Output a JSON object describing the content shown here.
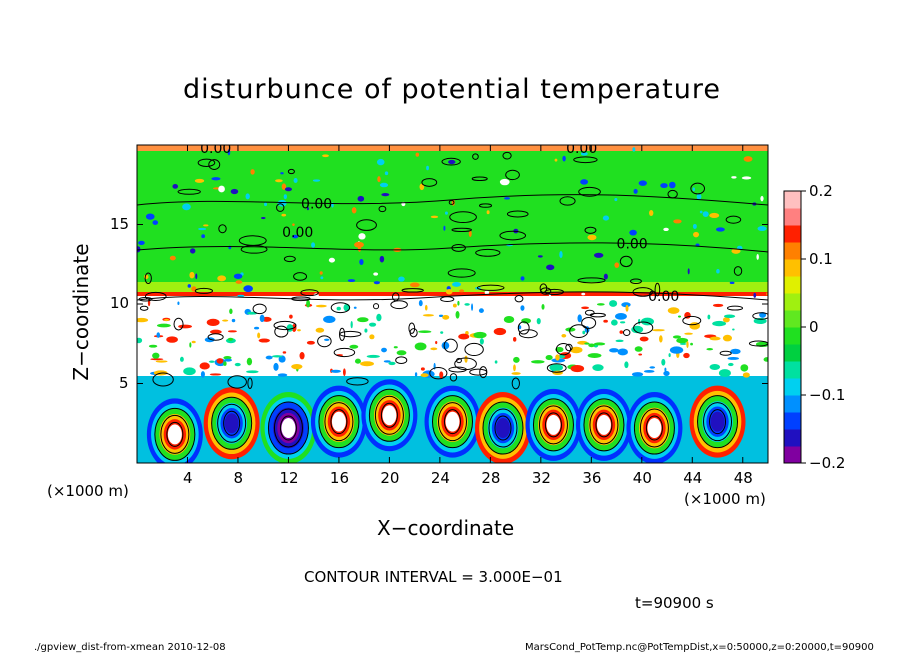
{
  "chart_data": {
    "type": "heatmap",
    "title": "disturbunce of potential temperature",
    "xlabel": "X−coordinate",
    "ylabel": "Z−coordinate",
    "x_unit": "(×1000 m)",
    "y_unit": "(×1000 m)",
    "x_ticks": [
      "4",
      "8",
      "12",
      "16",
      "20",
      "24",
      "28",
      "32",
      "36",
      "40",
      "44",
      "48"
    ],
    "y_ticks": [
      "5",
      "10",
      "15"
    ],
    "xlim": [
      0,
      50
    ],
    "ylim": [
      0,
      20
    ],
    "colorbar": {
      "ticks": [
        "0.2",
        "0.1",
        "0",
        "−0.1",
        "−0.2"
      ],
      "range": [
        -0.2,
        0.2
      ],
      "colors": [
        "#8000a0",
        "#2010c0",
        "#0040ff",
        "#0090ff",
        "#00d0f0",
        "#00e0a0",
        "#00d040",
        "#20e020",
        "#60e820",
        "#a0f010",
        "#e0f000",
        "#ffc000",
        "#ff8000",
        "#ff2000",
        "#ff8080",
        "#ffc0c0"
      ]
    },
    "contour_labels": [
      "0.00",
      "0.00",
      "0.00",
      "0.00",
      "0.00",
      "0.00"
    ],
    "contour_interval_text": "CONTOUR INTERVAL = 3.000E−01",
    "time_text": "t=90900 s"
  },
  "footer": {
    "left": "./gpview_dist-from-xmean  2010-12-08",
    "right": "MarsCond_PotTemp.nc@PotTempDist,x=0:50000,z=0:20000,t=90900"
  }
}
